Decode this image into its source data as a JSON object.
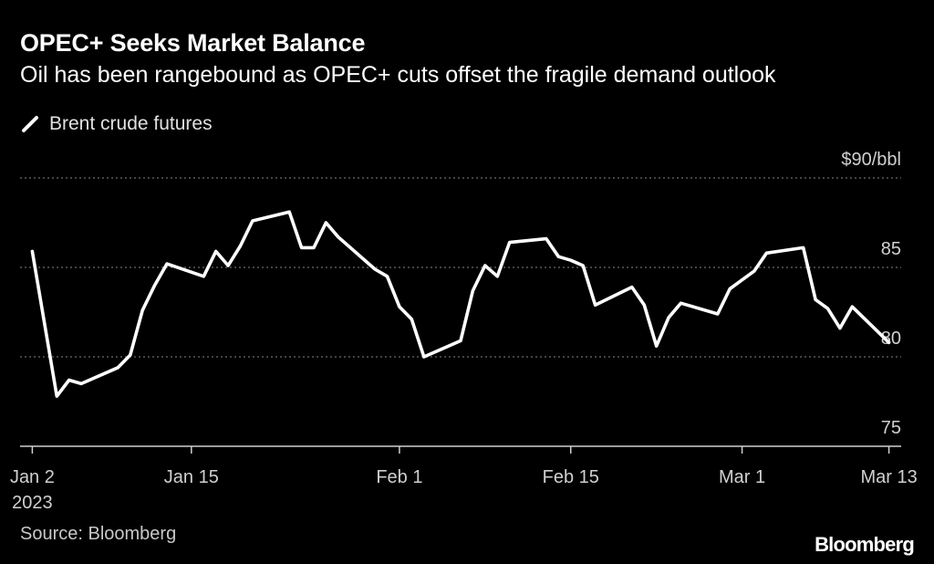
{
  "header": {
    "title": "OPEC+ Seeks Market Balance",
    "subtitle": "Oil has been rangebound as OPEC+ cuts offset the fragile demand outlook"
  },
  "legend": {
    "label": "Brent crude futures"
  },
  "footer": {
    "source": "Source: Bloomberg",
    "logo": "Bloomberg"
  },
  "colors": {
    "background": "#000000",
    "line": "#ffffff",
    "grid": "#6b6b6b",
    "text": "#ffffff",
    "muted": "#c8c8c8"
  },
  "chart_data": {
    "type": "line",
    "title": "OPEC+ Seeks Market Balance",
    "subtitle": "Oil has been rangebound as OPEC+ cuts offset the fragile demand outlook",
    "ylabel": "",
    "y_unit_label": "$90/bbl",
    "ylim": [
      75,
      90
    ],
    "yticks": [
      75,
      80,
      85
    ],
    "xlim": [
      "2023-01-01",
      "2023-03-14"
    ],
    "xticks": [
      {
        "date": "2023-01-02",
        "label": "Jan 2",
        "sublabel": "2023"
      },
      {
        "date": "2023-01-15",
        "label": "Jan 15"
      },
      {
        "date": "2023-02-01",
        "label": "Feb 1"
      },
      {
        "date": "2023-02-15",
        "label": "Feb 15"
      },
      {
        "date": "2023-03-01",
        "label": "Mar 1"
      },
      {
        "date": "2023-03-13",
        "label": "Mar 13"
      }
    ],
    "grid": "horizontal-dotted",
    "legend_position": "top-left",
    "series": [
      {
        "name": "Brent crude futures",
        "x": [
          "2023-01-02",
          "2023-01-04",
          "2023-01-05",
          "2023-01-06",
          "2023-01-09",
          "2023-01-10",
          "2023-01-11",
          "2023-01-12",
          "2023-01-13",
          "2023-01-16",
          "2023-01-17",
          "2023-01-18",
          "2023-01-19",
          "2023-01-20",
          "2023-01-23",
          "2023-01-24",
          "2023-01-25",
          "2023-01-26",
          "2023-01-27",
          "2023-01-30",
          "2023-01-31",
          "2023-02-01",
          "2023-02-02",
          "2023-02-03",
          "2023-02-06",
          "2023-02-07",
          "2023-02-08",
          "2023-02-09",
          "2023-02-10",
          "2023-02-13",
          "2023-02-14",
          "2023-02-15",
          "2023-02-16",
          "2023-02-17",
          "2023-02-20",
          "2023-02-21",
          "2023-02-22",
          "2023-02-23",
          "2023-02-24",
          "2023-02-27",
          "2023-02-28",
          "2023-03-01",
          "2023-03-02",
          "2023-03-03",
          "2023-03-06",
          "2023-03-07",
          "2023-03-08",
          "2023-03-09",
          "2023-03-10",
          "2023-03-13"
        ],
        "y": [
          85.9,
          77.8,
          78.7,
          78.5,
          79.4,
          80.1,
          82.6,
          84.0,
          85.2,
          84.5,
          85.9,
          85.1,
          86.2,
          87.6,
          88.1,
          86.1,
          86.1,
          87.5,
          86.7,
          84.9,
          84.5,
          82.8,
          82.1,
          80.0,
          80.9,
          83.7,
          85.1,
          84.5,
          86.4,
          86.6,
          85.6,
          85.4,
          85.1,
          82.9,
          83.9,
          82.9,
          80.6,
          82.2,
          83.0,
          82.4,
          83.8,
          84.3,
          84.8,
          85.8,
          86.1,
          83.2,
          82.7,
          81.6,
          82.8,
          80.8
        ]
      }
    ]
  }
}
